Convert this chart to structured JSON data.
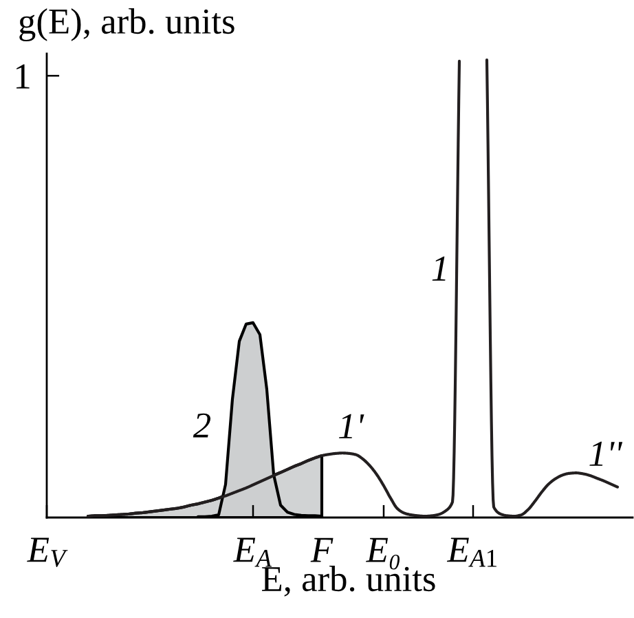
{
  "chart_data": {
    "type": "line",
    "ylabel": "g(E), arb. units",
    "xlabel": "E, arb. units",
    "annotations": [
      "1'",
      "1''"
    ],
    "categories": [
      "E$_{V}$",
      null,
      null,
      null,
      null,
      null,
      null,
      null,
      null,
      null,
      null,
      null,
      null,
      null,
      null,
      null,
      null,
      null,
      null,
      null,
      null,
      null,
      null,
      null,
      null,
      null,
      null,
      null,
      null,
      null,
      "E$_{A}$",
      null,
      null,
      null,
      null,
      null,
      null,
      null,
      null,
      null,
      "F",
      null,
      null,
      null,
      null,
      null,
      null,
      null,
      null,
      "E₀",
      null,
      null,
      null,
      null,
      null,
      null,
      null,
      null,
      null,
      null,
      null,
      null,
      "E$_{A1}$",
      null,
      null,
      null,
      null,
      null,
      null,
      null,
      null,
      null,
      null,
      null,
      null,
      null,
      null,
      null,
      null,
      null,
      null,
      null,
      null,
      null
    ],
    "ylim": [
      0,
      1.05
    ],
    "yticks": [
      1
    ],
    "series": [
      {
        "type": "area",
        "color": "#d1d3d4",
        "values": [
          null,
          null,
          null,
          null,
          null,
          null,
          0.003,
          0.004,
          0.004,
          0.005,
          0.006,
          0.007,
          0.008,
          0.01,
          0.011,
          0.013,
          0.015,
          0.017,
          0.019,
          0.021,
          0.024,
          0.028,
          0.031,
          0.035,
          0.039,
          0.044,
          null,
          null,
          null,
          null,
          null,
          null,
          null,
          null,
          0.102,
          0.109,
          0.116,
          0.122,
          0.129,
          0.135,
          0.14,
          null,
          null,
          null,
          null,
          null,
          null,
          null,
          null,
          null,
          null,
          null,
          null,
          null,
          null,
          null,
          null,
          null,
          null,
          null,
          null,
          null,
          null,
          null,
          null,
          null,
          null,
          null,
          null,
          null,
          null,
          null,
          null,
          null,
          null,
          null,
          null,
          null,
          null,
          null,
          null,
          null,
          null,
          null
        ]
      },
      {
        "type": "area",
        "name": "2",
        "color": "#cdcfd0",
        "values": [
          null,
          null,
          null,
          null,
          null,
          null,
          null,
          null,
          null,
          null,
          null,
          null,
          null,
          null,
          null,
          null,
          null,
          null,
          null,
          null,
          null,
          null,
          0.002,
          0.002,
          0.003,
          0.006,
          0.075,
          0.268,
          0.399,
          0.438,
          0.441,
          0.414,
          0.29,
          0.097,
          0.028,
          0.012,
          0.007,
          0.005,
          0.004,
          0.004,
          0.003,
          null,
          null,
          null,
          null,
          null,
          null,
          null,
          null,
          null,
          null,
          null,
          null,
          null,
          null,
          null,
          null,
          null,
          null,
          null,
          null,
          null,
          null,
          null,
          null,
          null,
          null,
          null,
          null,
          null,
          null,
          null,
          null,
          null,
          null,
          null,
          null,
          null,
          null,
          null,
          null,
          null,
          null,
          null
        ]
      },
      {
        "name": "1",
        "color": "#231f20",
        "values": [
          null,
          null,
          null,
          null,
          null,
          null,
          0.003,
          0.004,
          0.004,
          0.005,
          0.006,
          0.007,
          0.008,
          0.01,
          0.011,
          0.013,
          0.015,
          0.017,
          0.019,
          0.021,
          0.024,
          0.028,
          0.031,
          0.035,
          0.039,
          0.044,
          0.049,
          0.055,
          0.061,
          0.067,
          0.074,
          0.081,
          0.088,
          0.095,
          0.102,
          0.109,
          0.116,
          0.122,
          0.129,
          0.135,
          0.14,
          0.143,
          0.145,
          0.146,
          0.145,
          0.142,
          0.132,
          0.117,
          0.097,
          0.072,
          0.044,
          0.02,
          0.01,
          0.006,
          0.004,
          0.003,
          0.004,
          0.007,
          0.015,
          0.035,
          1.033,
          null,
          null,
          null,
          1.036,
          0.024,
          0.008,
          0.004,
          0.003,
          0.006,
          0.018,
          0.037,
          0.058,
          0.076,
          0.088,
          0.096,
          0.1,
          0.101,
          0.099,
          0.095,
          0.089,
          0.083,
          0.076,
          0.069
        ]
      }
    ]
  }
}
